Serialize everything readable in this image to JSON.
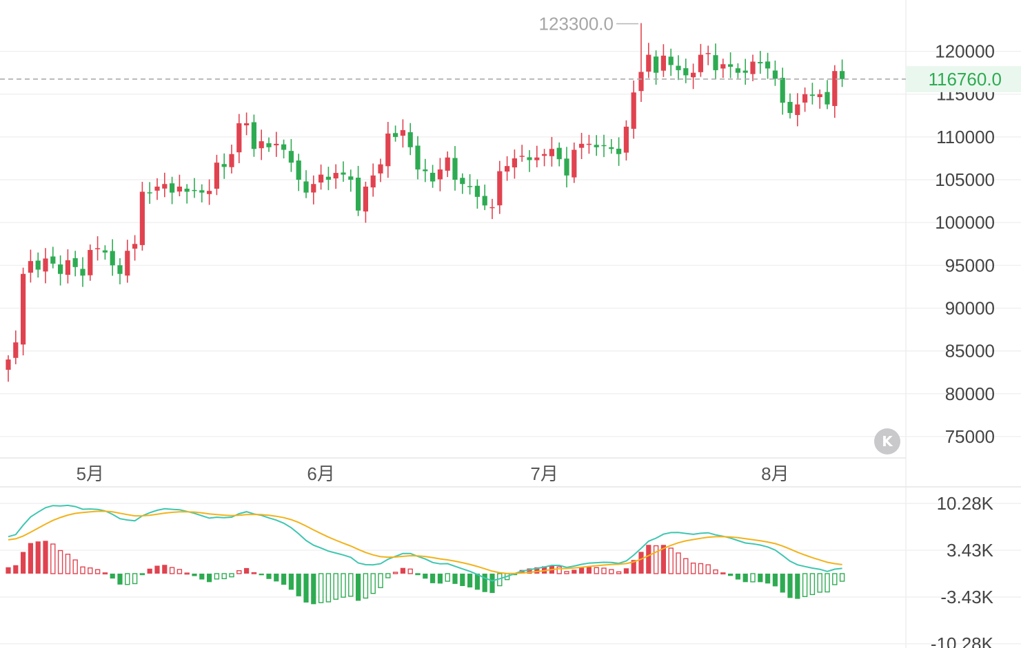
{
  "chart_data": {
    "type": "candlestick",
    "price_axis": {
      "ylim": [
        72500,
        126000
      ],
      "ticks": [
        120000,
        115000,
        110000,
        105000,
        100000,
        95000,
        90000,
        85000,
        80000,
        75000
      ],
      "tick_labels": [
        "120000",
        "115000",
        "110000",
        "105000",
        "100000",
        "95000",
        "90000",
        "85000",
        "80000",
        "75000"
      ]
    },
    "x_axis": {
      "months": [
        {
          "label": "5月",
          "index": 11
        },
        {
          "label": "6月",
          "index": 42
        },
        {
          "label": "7月",
          "index": 72
        },
        {
          "label": "8月",
          "index": 103
        }
      ]
    },
    "peak": {
      "label": "123300.0",
      "value": 123300,
      "index": 85
    },
    "current": {
      "label": "116760.0",
      "value": 116760
    },
    "anchors": [
      [
        0,
        84000
      ],
      [
        1,
        86000
      ],
      [
        2,
        94000
      ],
      [
        3,
        95500
      ],
      [
        4,
        94500
      ],
      [
        5,
        95800
      ],
      [
        6,
        95200
      ],
      [
        7,
        94000
      ],
      [
        8,
        95600
      ],
      [
        9,
        94800
      ],
      [
        10,
        93800
      ],
      [
        11,
        96800
      ],
      [
        12,
        97000
      ],
      [
        13,
        96500
      ],
      [
        14,
        95000
      ],
      [
        15,
        94000
      ],
      [
        16,
        96700
      ],
      [
        17,
        97500
      ],
      [
        18,
        103600
      ],
      [
        19,
        103500
      ],
      [
        20,
        104200
      ],
      [
        21,
        104500
      ],
      [
        22,
        103500
      ],
      [
        23,
        104200
      ],
      [
        24,
        103600
      ],
      [
        25,
        103800
      ],
      [
        26,
        103500
      ],
      [
        27,
        103700
      ],
      [
        28,
        107000
      ],
      [
        29,
        106500
      ],
      [
        30,
        108000
      ],
      [
        31,
        111600
      ],
      [
        32,
        111600
      ],
      [
        33,
        108600
      ],
      [
        34,
        109500
      ],
      [
        35,
        108800
      ],
      [
        36,
        109200
      ],
      [
        37,
        108500
      ],
      [
        38,
        107000
      ],
      [
        39,
        105000
      ],
      [
        40,
        103500
      ],
      [
        41,
        104500
      ],
      [
        42,
        105600
      ],
      [
        43,
        105000
      ],
      [
        44,
        105800
      ],
      [
        45,
        105600
      ],
      [
        46,
        105000
      ],
      [
        47,
        101400
      ],
      [
        48,
        104200
      ],
      [
        49,
        105500
      ],
      [
        50,
        106800
      ],
      [
        51,
        110400
      ],
      [
        52,
        110000
      ],
      [
        53,
        110800
      ],
      [
        54,
        108800
      ],
      [
        55,
        106200
      ],
      [
        56,
        106000
      ],
      [
        57,
        104800
      ],
      [
        58,
        106200
      ],
      [
        59,
        107600
      ],
      [
        60,
        105000
      ],
      [
        61,
        104500
      ],
      [
        62,
        104200
      ],
      [
        63,
        103000
      ],
      [
        64,
        102000
      ],
      [
        65,
        101800
      ],
      [
        66,
        106000
      ],
      [
        67,
        106600
      ],
      [
        68,
        107500
      ],
      [
        69,
        107800
      ],
      [
        70,
        107300
      ],
      [
        71,
        107600
      ],
      [
        72,
        108000
      ],
      [
        73,
        108600
      ],
      [
        74,
        107400
      ],
      [
        75,
        105500
      ],
      [
        76,
        108500
      ],
      [
        77,
        109200
      ],
      [
        78,
        109200
      ],
      [
        79,
        108800
      ],
      [
        80,
        109000
      ],
      [
        81,
        108600
      ],
      [
        82,
        108000
      ],
      [
        83,
        111200
      ],
      [
        84,
        115200
      ],
      [
        85,
        117600
      ],
      [
        86,
        119600
      ],
      [
        87,
        117500
      ],
      [
        88,
        119500
      ],
      [
        89,
        118400
      ],
      [
        90,
        117800
      ],
      [
        91,
        117200
      ],
      [
        92,
        117500
      ],
      [
        93,
        119600
      ],
      [
        94,
        119800
      ],
      [
        95,
        117800
      ],
      [
        96,
        118500
      ],
      [
        97,
        118200
      ],
      [
        98,
        117500
      ],
      [
        99,
        117500
      ],
      [
        100,
        118800
      ],
      [
        101,
        118600
      ],
      [
        102,
        118000
      ],
      [
        103,
        116800
      ],
      [
        104,
        114000
      ],
      [
        105,
        112800
      ],
      [
        106,
        113800
      ],
      [
        107,
        115000
      ],
      [
        108,
        114800
      ],
      [
        109,
        115000
      ],
      [
        110,
        113800
      ],
      [
        111,
        117700
      ],
      [
        112,
        116760
      ]
    ],
    "macd": {
      "axis_ticks": [
        "10.28K",
        "3.43K",
        "-3.43K",
        "-10.28K"
      ],
      "axis_values": [
        10280,
        3430,
        -3430,
        -10280
      ],
      "ylim": [
        -10900,
        10900
      ],
      "fast_line_color": "#3ec6b0",
      "slow_line_color": "#f2b21a"
    },
    "colors": {
      "up": "#e0434f",
      "down": "#2eab52",
      "grid": "#eeeeee",
      "current_line": "#aaaaaa"
    }
  }
}
